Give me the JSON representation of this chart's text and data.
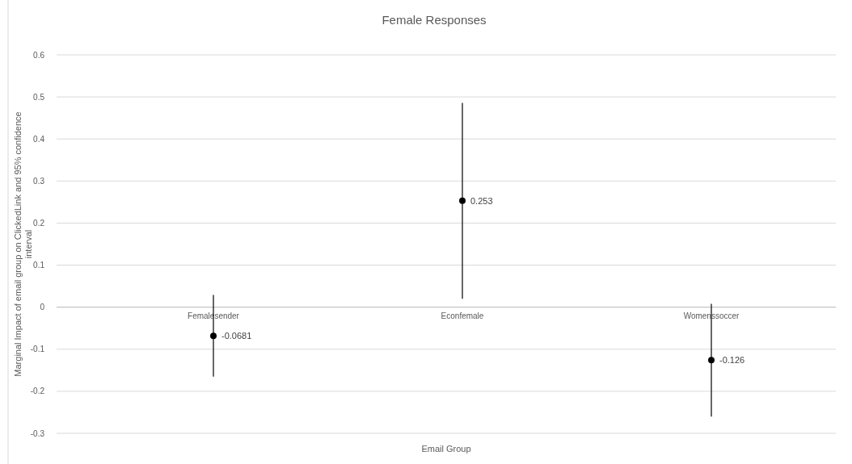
{
  "chart_data": {
    "type": "scatter",
    "title": "Female Responses",
    "xlabel": "Email Group",
    "ylabel": "Marginal Impact of email group on ClickedLink and 95% confidence interval",
    "categories": [
      "Femalesender",
      "Econfemale",
      "Womenssoccer"
    ],
    "series": [
      {
        "color": "#000000",
        "values": [
          -0.0681,
          0.253,
          -0.126
        ],
        "errors": [
          0.097,
          0.233,
          0.134
        ]
      }
    ],
    "ylim": [
      -0.3,
      0.6
    ],
    "yticks": [
      -0.3,
      -0.2,
      -0.1,
      0,
      0.1,
      0.2,
      0.3,
      0.4,
      0.5,
      0.6
    ],
    "grid": "y",
    "marker": "circle",
    "data_labels": true
  }
}
